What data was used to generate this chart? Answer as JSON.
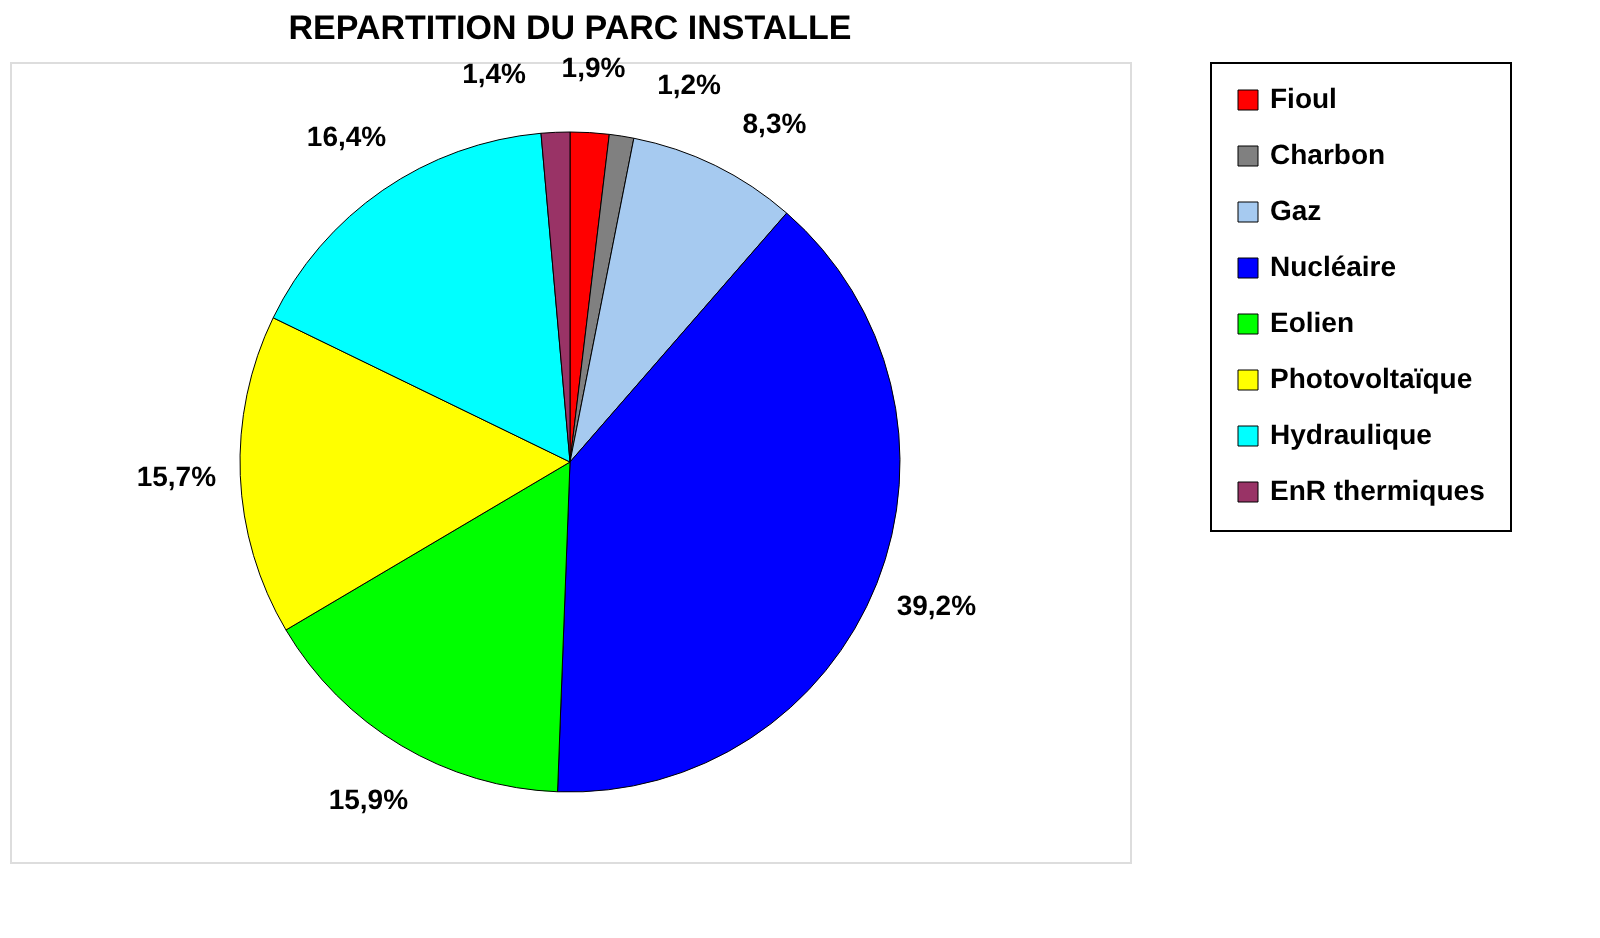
{
  "chart_data": {
    "type": "pie",
    "title": "REPARTITION DU PARC INSTALLE",
    "categories": [
      "Fioul",
      "Charbon",
      "Gaz",
      "Nucléaire",
      "Eolien",
      "Photovoltaïque",
      "Hydraulique",
      "EnR thermiques"
    ],
    "values": [
      1.9,
      1.2,
      8.3,
      39.2,
      15.9,
      15.7,
      16.4,
      1.4
    ],
    "colors": [
      "#ff0000",
      "#808080",
      "#a6caf0",
      "#0000ff",
      "#00ff00",
      "#ffff00",
      "#00ffff",
      "#993366"
    ],
    "value_labels": [
      "1,9%",
      "1,2%",
      "8,3%",
      "39,2%",
      "15,9%",
      "15,7%",
      "16,4%",
      "1,4%"
    ],
    "legend": "right"
  }
}
